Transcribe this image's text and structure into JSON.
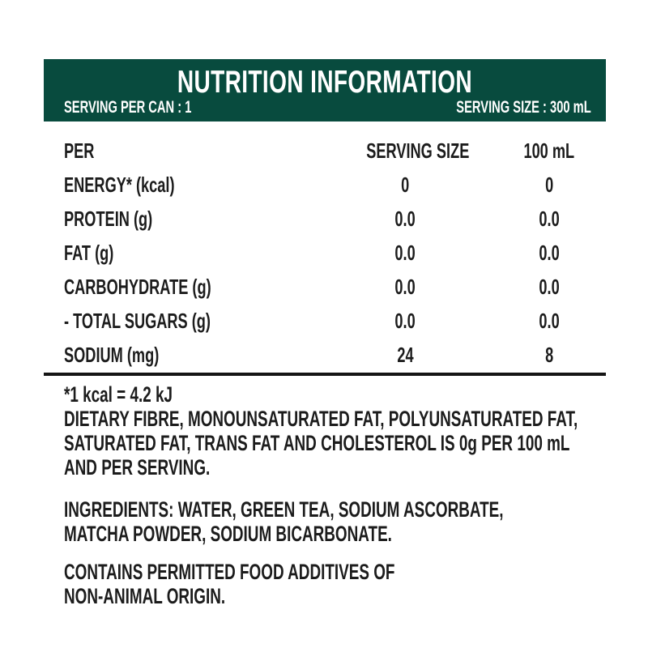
{
  "colors": {
    "header_bg": "#084b3e",
    "header_text": "#ffffff",
    "body_text": "#1c1c1c",
    "divider": "#151515",
    "background": "#ffffff"
  },
  "header": {
    "title": "NUTRITION INFORMATION",
    "serving_per_can": "SERVING PER CAN : 1",
    "serving_size": "SERVING SIZE : 300 mL"
  },
  "table": {
    "columns": [
      "PER",
      "SERVING SIZE",
      "100 mL"
    ],
    "rows": [
      {
        "label": "ENERGY* (kcal)",
        "serving_size": "0",
        "per_100ml": "0"
      },
      {
        "label": "PROTEIN (g)",
        "serving_size": "0.0",
        "per_100ml": "0.0"
      },
      {
        "label": "FAT (g)",
        "serving_size": "0.0",
        "per_100ml": "0.0"
      },
      {
        "label": "CARBOHYDRATE (g)",
        "serving_size": "0.0",
        "per_100ml": "0.0"
      },
      {
        "label": "- TOTAL SUGARS (g)",
        "serving_size": "0.0",
        "per_100ml": "0.0"
      },
      {
        "label": "SODIUM (mg)",
        "serving_size": "24",
        "per_100ml": "8"
      }
    ]
  },
  "footnotes": {
    "kcal_note": "*1 kcal = 4.2 kJ",
    "zero_note_lines": [
      "DIETARY FIBRE, MONOUNSATURATED FAT, POLYUNSATURATED FAT,",
      "SATURATED FAT, TRANS FAT AND CHOLESTEROL IS 0g PER 100 mL",
      "AND PER SERVING."
    ],
    "ingredients_lines": [
      "INGREDIENTS: WATER, GREEN TEA, SODIUM ASCORBATE,",
      "MATCHA POWDER, SODIUM BICARBONATE."
    ],
    "additives_lines": [
      "CONTAINS PERMITTED FOOD ADDITIVES OF",
      "NON-ANIMAL ORIGIN."
    ]
  }
}
